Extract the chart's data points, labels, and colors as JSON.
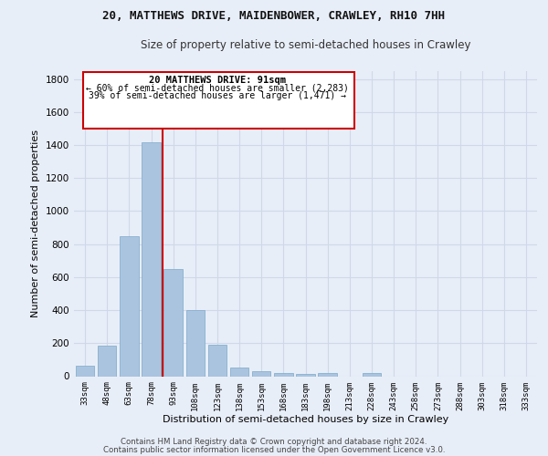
{
  "title1": "20, MATTHEWS DRIVE, MAIDENBOWER, CRAWLEY, RH10 7HH",
  "title2": "Size of property relative to semi-detached houses in Crawley",
  "xlabel": "Distribution of semi-detached houses by size in Crawley",
  "ylabel": "Number of semi-detached properties",
  "footer1": "Contains HM Land Registry data © Crown copyright and database right 2024.",
  "footer2": "Contains public sector information licensed under the Open Government Licence v3.0.",
  "annotation_title": "20 MATTHEWS DRIVE: 91sqm",
  "annotation_line1": "← 60% of semi-detached houses are smaller (2,283)",
  "annotation_line2": "39% of semi-detached houses are larger (1,471) →",
  "bar_labels": [
    "33sqm",
    "48sqm",
    "63sqm",
    "78sqm",
    "93sqm",
    "108sqm",
    "123sqm",
    "138sqm",
    "153sqm",
    "168sqm",
    "183sqm",
    "198sqm",
    "213sqm",
    "228sqm",
    "243sqm",
    "258sqm",
    "273sqm",
    "288sqm",
    "303sqm",
    "318sqm",
    "333sqm"
  ],
  "bar_values": [
    65,
    185,
    850,
    1415,
    650,
    400,
    192,
    50,
    28,
    20,
    12,
    20,
    0,
    18,
    0,
    0,
    0,
    0,
    0,
    0,
    0
  ],
  "bar_color": "#aac4e0",
  "bar_edge_color": "#7aaac8",
  "grid_color": "#d0d8e8",
  "reference_line_color": "#cc0000",
  "ylim": [
    0,
    1850
  ],
  "yticks": [
    0,
    200,
    400,
    600,
    800,
    1000,
    1200,
    1400,
    1600,
    1800
  ],
  "bg_color": "#e8eef8",
  "annotation_box_edge": "#cc0000"
}
